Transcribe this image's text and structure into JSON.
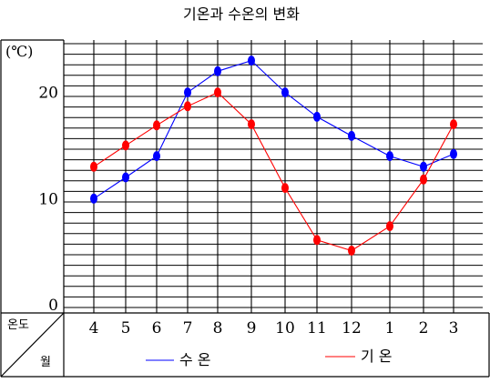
{
  "chart_data": {
    "type": "line",
    "title": "기온과 수온의 변화",
    "ylabel": "(℃)",
    "corner_top": "온도",
    "corner_bottom": "월",
    "categories": [
      "4",
      "5",
      "6",
      "7",
      "8",
      "9",
      "10",
      "11",
      "12",
      "1",
      "2",
      "3"
    ],
    "yticks": [
      "0",
      "10",
      "20"
    ],
    "ylim": [
      0,
      24
    ],
    "grid": true,
    "legend_position": "bottom",
    "series": [
      {
        "name": "수 온",
        "color": "#0000ff",
        "values": [
          10,
          12,
          14,
          20,
          22,
          23,
          20,
          17.7,
          15.9,
          14,
          13,
          14.2
        ]
      },
      {
        "name": "기 온",
        "color": "#ff0000",
        "values": [
          13,
          15,
          16.9,
          18.7,
          20,
          17,
          11,
          6.1,
          5.1,
          7.4,
          11.8,
          17
        ]
      }
    ]
  }
}
